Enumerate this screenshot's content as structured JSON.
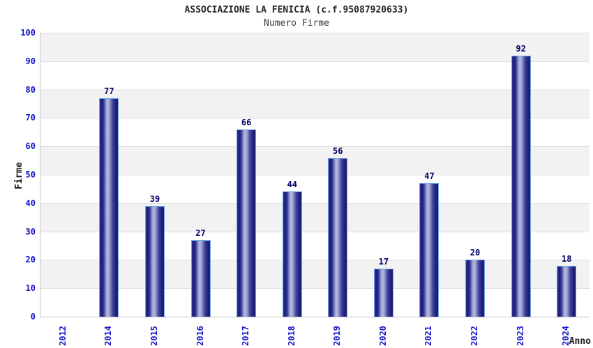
{
  "header": {
    "title": "ASSOCIAZIONE LA FENICIA (c.f.95087920633)",
    "subtitle": "Numero Firme"
  },
  "chart_data": {
    "type": "bar",
    "title": "ASSOCIAZIONE LA FENICIA (c.f.95087920633)",
    "subtitle": "Numero Firme",
    "categories": [
      "2012",
      "2014",
      "2015",
      "2016",
      "2017",
      "2018",
      "2019",
      "2020",
      "2021",
      "2022",
      "2023",
      "2024"
    ],
    "values": [
      0,
      77,
      39,
      27,
      66,
      44,
      56,
      17,
      47,
      20,
      92,
      18
    ],
    "xlabel": "Anno",
    "ylabel": "Firme",
    "ylim": [
      0,
      100
    ],
    "yticks": [
      0,
      10,
      20,
      30,
      40,
      50,
      60,
      70,
      80,
      90,
      100
    ],
    "grid": "horizontal-bands",
    "legend": "none",
    "colors": {
      "tick_blue": "#1414cc",
      "value_navy": "#000066",
      "bar_dark": "#1b1b72",
      "bar_light": "#b8bee2",
      "bar_border": "#6fa6e8",
      "band_gray": "#f2f2f2",
      "grid_line": "#e1e1e1",
      "axis_line": "#c2c2c2"
    }
  }
}
